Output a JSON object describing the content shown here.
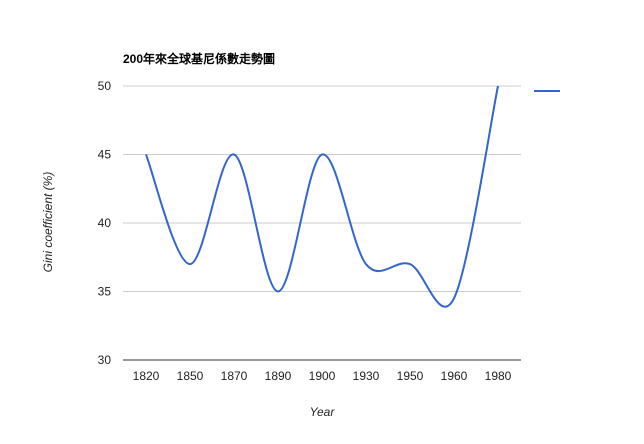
{
  "chart_data": {
    "type": "line",
    "title": "200年來全球基尼係數走勢圖",
    "xlabel": "Year",
    "ylabel": "Gini coefficient (%)",
    "categories": [
      "1820",
      "1850",
      "1870",
      "1890",
      "1900",
      "1930",
      "1950",
      "1960",
      "1980"
    ],
    "series": [
      {
        "name": "",
        "values": [
          45,
          37,
          45,
          35,
          45,
          37,
          37,
          34.5,
          50
        ],
        "color": "#3366cc"
      }
    ],
    "ylim": [
      30,
      50
    ],
    "yticks": [
      "30",
      "35",
      "40",
      "45",
      "50"
    ],
    "grid": true,
    "smooth": true,
    "legend": "right"
  }
}
